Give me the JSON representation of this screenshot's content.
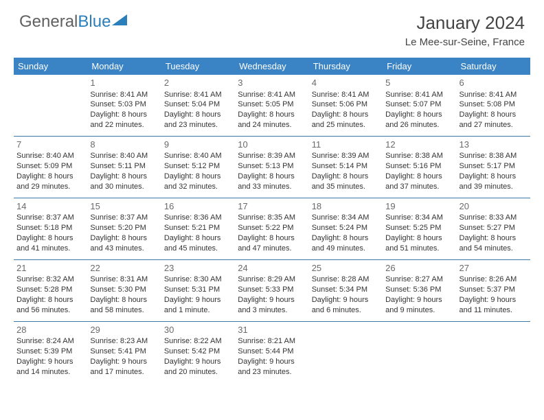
{
  "brand": {
    "part1": "General",
    "part2": "Blue"
  },
  "title": "January 2024",
  "location": "Le Mee-sur-Seine, France",
  "colors": {
    "header_bg": "#3a83c4",
    "header_text": "#ffffff",
    "rule": "#3a77a8",
    "body_text": "#333333",
    "daynum": "#6a6a6a",
    "brand_gray": "#606060",
    "brand_blue": "#2a7fbb",
    "page_bg": "#ffffff"
  },
  "day_headers": [
    "Sunday",
    "Monday",
    "Tuesday",
    "Wednesday",
    "Thursday",
    "Friday",
    "Saturday"
  ],
  "weeks": [
    [
      null,
      {
        "n": "1",
        "sr": "Sunrise: 8:41 AM",
        "ss": "Sunset: 5:03 PM",
        "dl": "Daylight: 8 hours and 22 minutes."
      },
      {
        "n": "2",
        "sr": "Sunrise: 8:41 AM",
        "ss": "Sunset: 5:04 PM",
        "dl": "Daylight: 8 hours and 23 minutes."
      },
      {
        "n": "3",
        "sr": "Sunrise: 8:41 AM",
        "ss": "Sunset: 5:05 PM",
        "dl": "Daylight: 8 hours and 24 minutes."
      },
      {
        "n": "4",
        "sr": "Sunrise: 8:41 AM",
        "ss": "Sunset: 5:06 PM",
        "dl": "Daylight: 8 hours and 25 minutes."
      },
      {
        "n": "5",
        "sr": "Sunrise: 8:41 AM",
        "ss": "Sunset: 5:07 PM",
        "dl": "Daylight: 8 hours and 26 minutes."
      },
      {
        "n": "6",
        "sr": "Sunrise: 8:41 AM",
        "ss": "Sunset: 5:08 PM",
        "dl": "Daylight: 8 hours and 27 minutes."
      }
    ],
    [
      {
        "n": "7",
        "sr": "Sunrise: 8:40 AM",
        "ss": "Sunset: 5:09 PM",
        "dl": "Daylight: 8 hours and 29 minutes."
      },
      {
        "n": "8",
        "sr": "Sunrise: 8:40 AM",
        "ss": "Sunset: 5:11 PM",
        "dl": "Daylight: 8 hours and 30 minutes."
      },
      {
        "n": "9",
        "sr": "Sunrise: 8:40 AM",
        "ss": "Sunset: 5:12 PM",
        "dl": "Daylight: 8 hours and 32 minutes."
      },
      {
        "n": "10",
        "sr": "Sunrise: 8:39 AM",
        "ss": "Sunset: 5:13 PM",
        "dl": "Daylight: 8 hours and 33 minutes."
      },
      {
        "n": "11",
        "sr": "Sunrise: 8:39 AM",
        "ss": "Sunset: 5:14 PM",
        "dl": "Daylight: 8 hours and 35 minutes."
      },
      {
        "n": "12",
        "sr": "Sunrise: 8:38 AM",
        "ss": "Sunset: 5:16 PM",
        "dl": "Daylight: 8 hours and 37 minutes."
      },
      {
        "n": "13",
        "sr": "Sunrise: 8:38 AM",
        "ss": "Sunset: 5:17 PM",
        "dl": "Daylight: 8 hours and 39 minutes."
      }
    ],
    [
      {
        "n": "14",
        "sr": "Sunrise: 8:37 AM",
        "ss": "Sunset: 5:18 PM",
        "dl": "Daylight: 8 hours and 41 minutes."
      },
      {
        "n": "15",
        "sr": "Sunrise: 8:37 AM",
        "ss": "Sunset: 5:20 PM",
        "dl": "Daylight: 8 hours and 43 minutes."
      },
      {
        "n": "16",
        "sr": "Sunrise: 8:36 AM",
        "ss": "Sunset: 5:21 PM",
        "dl": "Daylight: 8 hours and 45 minutes."
      },
      {
        "n": "17",
        "sr": "Sunrise: 8:35 AM",
        "ss": "Sunset: 5:22 PM",
        "dl": "Daylight: 8 hours and 47 minutes."
      },
      {
        "n": "18",
        "sr": "Sunrise: 8:34 AM",
        "ss": "Sunset: 5:24 PM",
        "dl": "Daylight: 8 hours and 49 minutes."
      },
      {
        "n": "19",
        "sr": "Sunrise: 8:34 AM",
        "ss": "Sunset: 5:25 PM",
        "dl": "Daylight: 8 hours and 51 minutes."
      },
      {
        "n": "20",
        "sr": "Sunrise: 8:33 AM",
        "ss": "Sunset: 5:27 PM",
        "dl": "Daylight: 8 hours and 54 minutes."
      }
    ],
    [
      {
        "n": "21",
        "sr": "Sunrise: 8:32 AM",
        "ss": "Sunset: 5:28 PM",
        "dl": "Daylight: 8 hours and 56 minutes."
      },
      {
        "n": "22",
        "sr": "Sunrise: 8:31 AM",
        "ss": "Sunset: 5:30 PM",
        "dl": "Daylight: 8 hours and 58 minutes."
      },
      {
        "n": "23",
        "sr": "Sunrise: 8:30 AM",
        "ss": "Sunset: 5:31 PM",
        "dl": "Daylight: 9 hours and 1 minute."
      },
      {
        "n": "24",
        "sr": "Sunrise: 8:29 AM",
        "ss": "Sunset: 5:33 PM",
        "dl": "Daylight: 9 hours and 3 minutes."
      },
      {
        "n": "25",
        "sr": "Sunrise: 8:28 AM",
        "ss": "Sunset: 5:34 PM",
        "dl": "Daylight: 9 hours and 6 minutes."
      },
      {
        "n": "26",
        "sr": "Sunrise: 8:27 AM",
        "ss": "Sunset: 5:36 PM",
        "dl": "Daylight: 9 hours and 9 minutes."
      },
      {
        "n": "27",
        "sr": "Sunrise: 8:26 AM",
        "ss": "Sunset: 5:37 PM",
        "dl": "Daylight: 9 hours and 11 minutes."
      }
    ],
    [
      {
        "n": "28",
        "sr": "Sunrise: 8:24 AM",
        "ss": "Sunset: 5:39 PM",
        "dl": "Daylight: 9 hours and 14 minutes."
      },
      {
        "n": "29",
        "sr": "Sunrise: 8:23 AM",
        "ss": "Sunset: 5:41 PM",
        "dl": "Daylight: 9 hours and 17 minutes."
      },
      {
        "n": "30",
        "sr": "Sunrise: 8:22 AM",
        "ss": "Sunset: 5:42 PM",
        "dl": "Daylight: 9 hours and 20 minutes."
      },
      {
        "n": "31",
        "sr": "Sunrise: 8:21 AM",
        "ss": "Sunset: 5:44 PM",
        "dl": "Daylight: 9 hours and 23 minutes."
      },
      null,
      null,
      null
    ]
  ]
}
